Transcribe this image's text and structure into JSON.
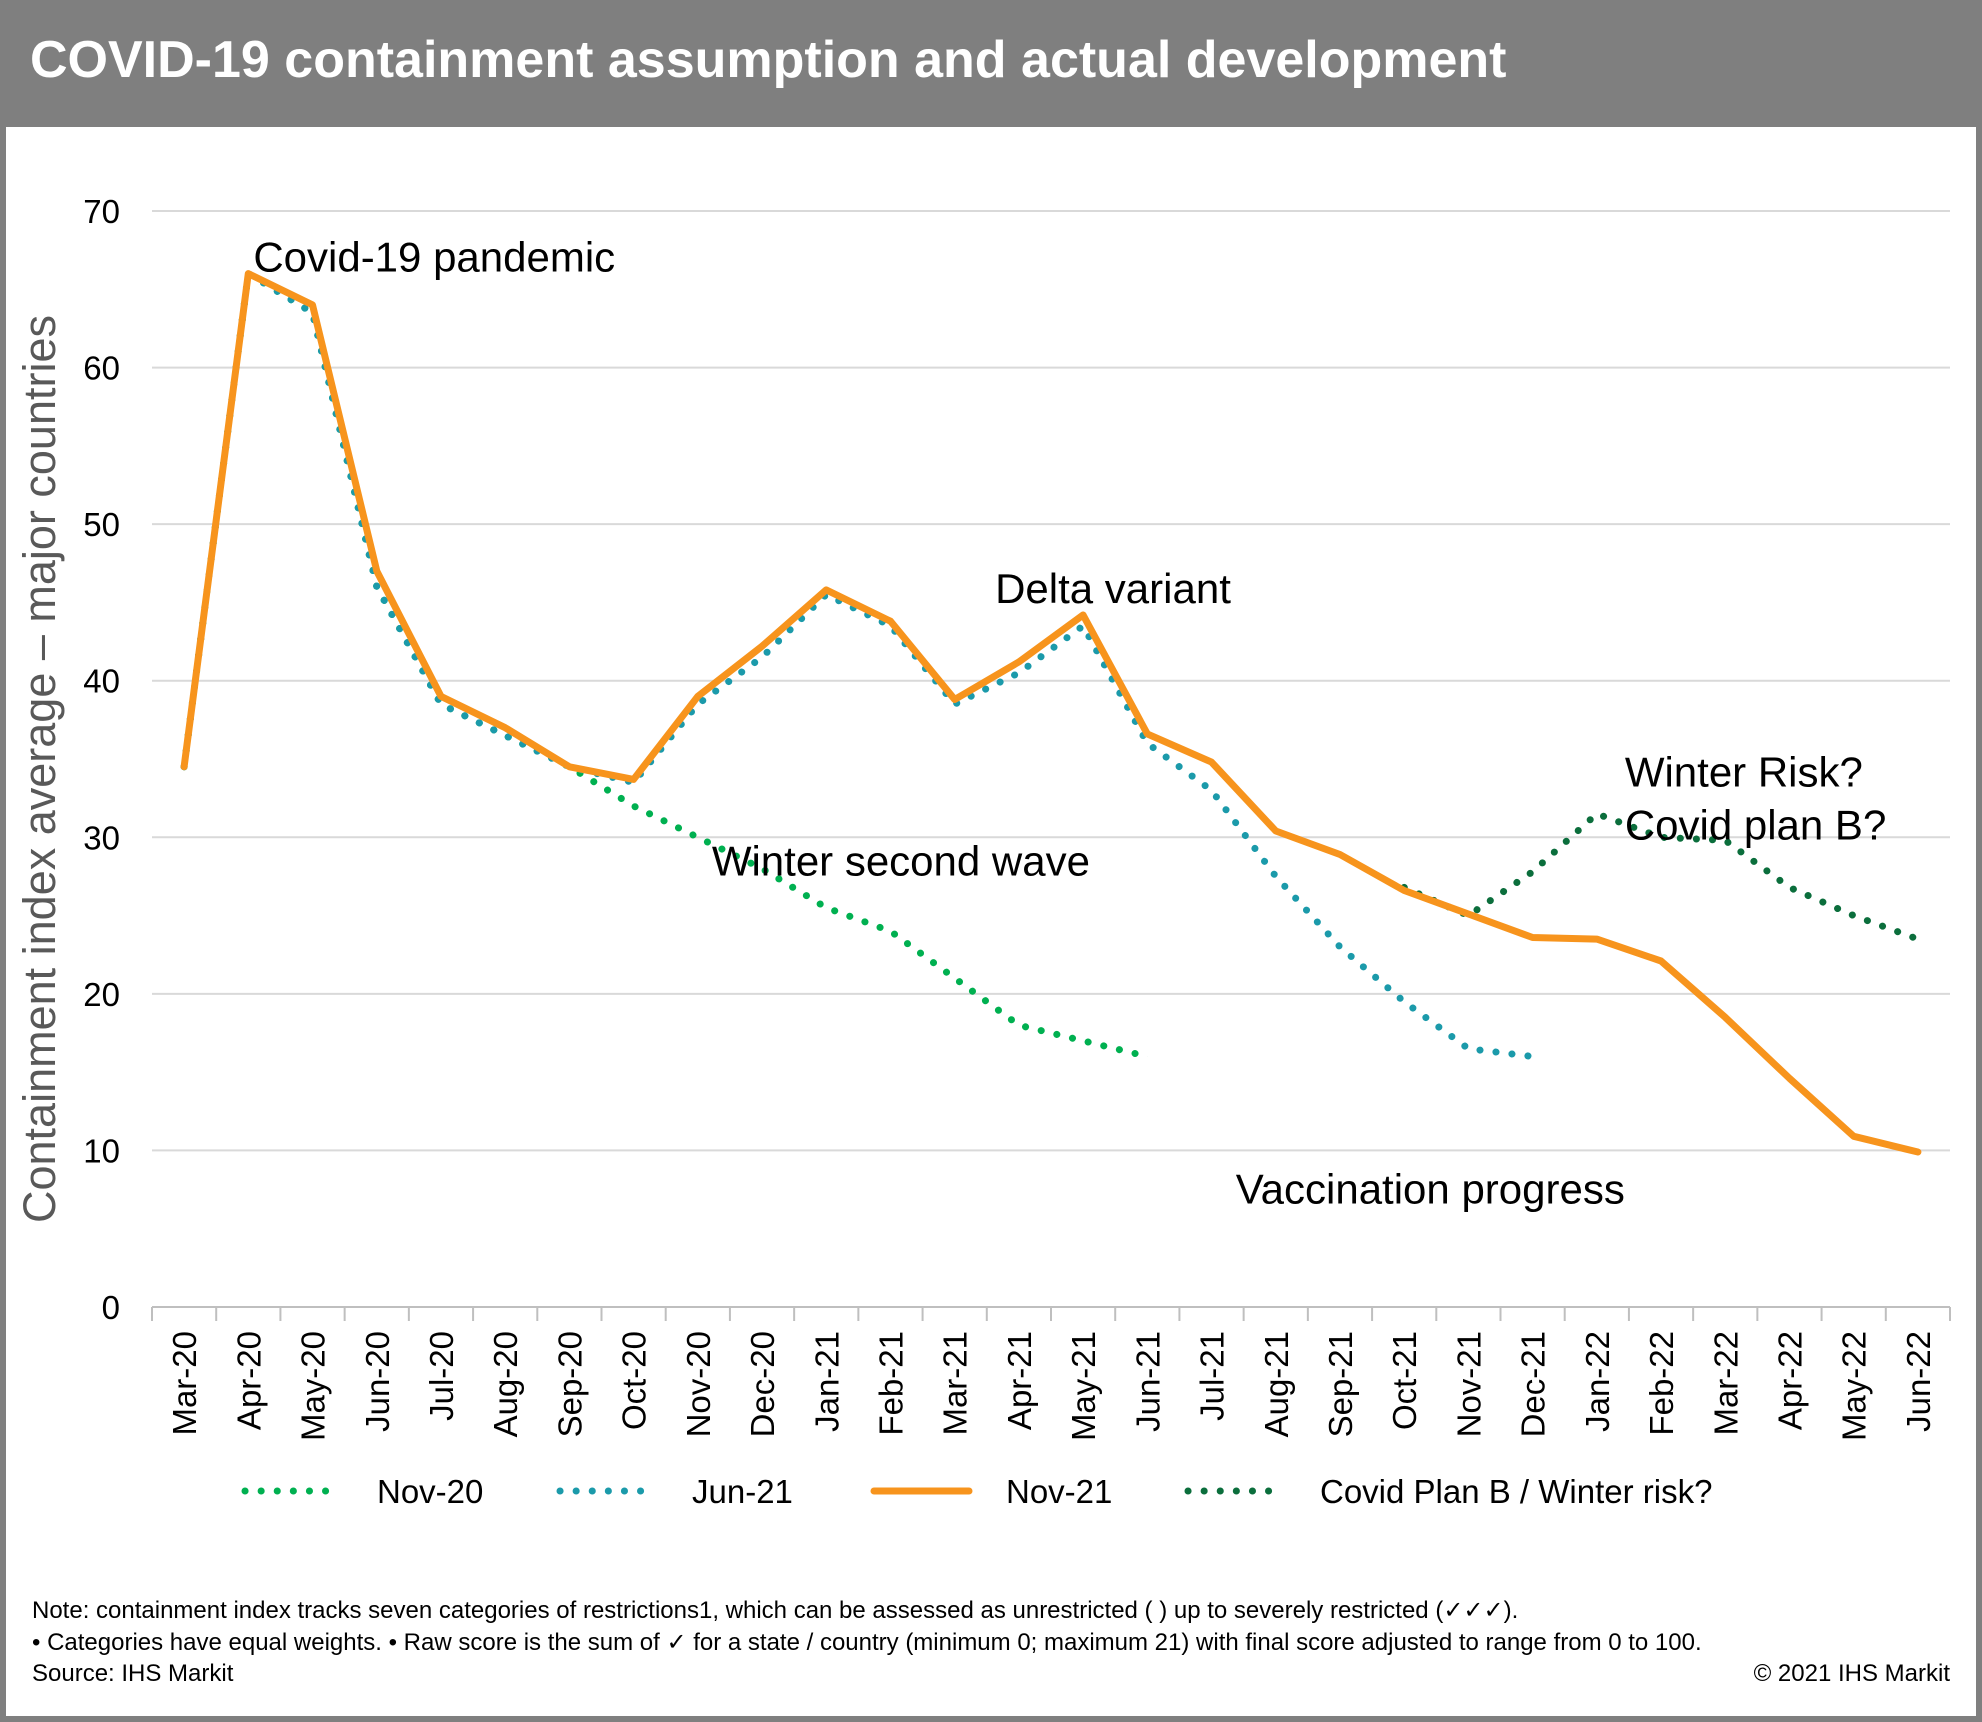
{
  "title": "COVID-19 containment assumption and actual development",
  "chart_data": {
    "type": "line",
    "ylabel": "Containment index average – major countries",
    "xlabel": "",
    "ylim": [
      0,
      70
    ],
    "yticks": [
      0,
      10,
      20,
      30,
      40,
      50,
      60,
      70
    ],
    "grid": true,
    "legend_position": "bottom",
    "categories": [
      "Mar-20",
      "Apr-20",
      "May-20",
      "Jun-20",
      "Jul-20",
      "Aug-20",
      "Sep-20",
      "Oct-20",
      "Nov-20",
      "Dec-20",
      "Jan-21",
      "Feb-21",
      "Mar-21",
      "Apr-21",
      "May-21",
      "Jun-21",
      "Jul-21",
      "Aug-21",
      "Sep-21",
      "Oct-21",
      "Nov-21",
      "Dec-21",
      "Jan-22",
      "Feb-22",
      "Mar-22",
      "Apr-22",
      "May-22",
      "Jun-22"
    ],
    "series": [
      {
        "name": "Nov-20",
        "color": "#00b050",
        "style": "dotted",
        "values": [
          34.5,
          66.0,
          63.5,
          46.0,
          38.5,
          36.5,
          34.5,
          32.0,
          30.0,
          28.0,
          25.5,
          24.0,
          21.0,
          18.0,
          17.0,
          16.0,
          null,
          null,
          null,
          null,
          null,
          null,
          null,
          null,
          null,
          null,
          null,
          null
        ]
      },
      {
        "name": "Jun-21",
        "color": "#1b9aaa",
        "style": "dotted",
        "values": [
          34.5,
          66.0,
          63.5,
          46.0,
          38.5,
          36.5,
          34.5,
          33.5,
          38.5,
          41.5,
          45.5,
          43.5,
          38.5,
          40.5,
          43.5,
          36.0,
          33.0,
          27.5,
          23.0,
          19.5,
          16.5,
          16.0,
          null,
          null,
          null,
          null,
          null,
          null
        ]
      },
      {
        "name": "Nov-21",
        "color": "#f7941d",
        "style": "solid",
        "values": [
          34.5,
          66.0,
          64.0,
          47.0,
          39.0,
          37.0,
          34.5,
          33.7,
          39.0,
          42.2,
          45.8,
          43.8,
          38.8,
          41.2,
          44.2,
          36.6,
          34.8,
          30.4,
          28.9,
          26.6,
          25.1,
          23.6,
          23.5,
          22.1,
          18.5,
          14.6,
          10.9,
          9.9
        ]
      },
      {
        "name": "Covid Plan B / Winter risk?",
        "color": "#0b6e3c",
        "style": "dotted",
        "values": [
          null,
          null,
          null,
          null,
          null,
          null,
          null,
          null,
          null,
          null,
          null,
          null,
          null,
          null,
          null,
          null,
          null,
          null,
          null,
          26.8,
          25.0,
          27.8,
          31.5,
          30.0,
          29.8,
          26.8,
          25.0,
          23.5
        ]
      }
    ],
    "annotations": [
      {
        "text": "Covid-19 pandemic",
        "x": "Apr-20",
        "y": 66
      },
      {
        "text": "Delta variant",
        "x": "May-21",
        "y": 44
      },
      {
        "text": "Winter second wave",
        "x": "Nov-20",
        "y": 30
      },
      {
        "text": "Winter Risk?",
        "x": "Jan-22",
        "y": 34
      },
      {
        "text": "Covid plan B?",
        "x": "Jan-22",
        "y": 30.5
      },
      {
        "text": "Vaccination progress",
        "x": "Aug-21",
        "y": 7.5
      }
    ]
  },
  "notes": {
    "line1": "Note: containment index tracks seven categories of restrictions1, which can be assessed as unrestricted ( ) up to severely restricted (✓✓✓).",
    "line2": "• Categories have equal weights. • Raw score is the sum of ✓ for a state / country (minimum 0; maximum 21) with final score adjusted to range from 0 to 100.",
    "source": "Source: IHS Markit",
    "copyright": "© 2021 IHS Markit"
  },
  "colors": {
    "header": "#7f7f7f",
    "gridline": "#d9d9d9",
    "axis": "#bfbfbf"
  }
}
